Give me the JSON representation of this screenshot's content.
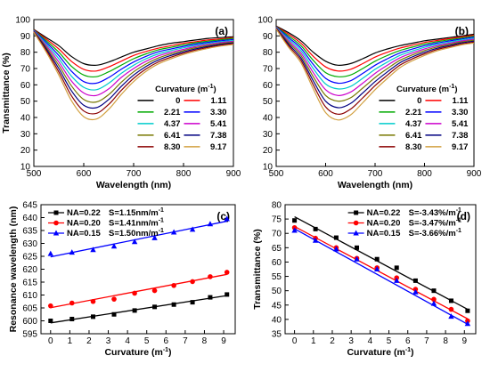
{
  "chart_data": [
    {
      "panel_label": "(a)",
      "type": "line",
      "xlabel": "Wavelength (nm)",
      "ylabel": "Transmittance (%)",
      "xlim": [
        500,
        900
      ],
      "ylim": [
        10,
        100
      ],
      "xticks": [
        500,
        600,
        700,
        800,
        900
      ],
      "yticks": [
        10,
        20,
        30,
        40,
        50,
        60,
        70,
        80,
        90,
        100
      ],
      "legend_title": "Curvature (m",
      "legend_title_sup": "-1",
      "legend_title_end": ")",
      "legend_position": "right",
      "x": [
        500,
        525,
        550,
        575,
        600,
        625,
        650,
        675,
        700,
        725,
        750,
        775,
        800,
        825,
        850,
        875,
        900
      ],
      "series": [
        {
          "name": "0",
          "color": "#000000",
          "values": [
            94,
            89,
            84,
            77.5,
            73,
            72,
            74,
            77,
            80,
            82,
            84,
            85.5,
            86.5,
            87.5,
            88.5,
            89,
            89.5
          ]
        },
        {
          "name": "1.11",
          "color": "#ff0000",
          "values": [
            93.8,
            88,
            82,
            74.5,
            69.5,
            68.5,
            71,
            74.5,
            78,
            80.5,
            82.5,
            84,
            85.5,
            86.5,
            87.5,
            88.2,
            89
          ]
        },
        {
          "name": "2.21",
          "color": "#00aa00",
          "values": [
            93.6,
            87,
            80,
            71.5,
            66,
            65,
            68,
            72,
            76,
            79,
            81.5,
            83,
            84.5,
            85.8,
            86.8,
            87.6,
            88.5
          ]
        },
        {
          "name": "3.30",
          "color": "#0000ff",
          "values": [
            93.4,
            86,
            78,
            68.5,
            62,
            61,
            64.5,
            69.5,
            74,
            77.5,
            80.3,
            82,
            83.6,
            85,
            86.1,
            87,
            87.8
          ]
        },
        {
          "name": "4.37",
          "color": "#00cccc",
          "values": [
            93.2,
            85,
            76,
            65.5,
            58.5,
            57,
            61,
            67,
            72,
            76,
            79,
            81,
            82.7,
            84.3,
            85.5,
            86.4,
            87.2
          ]
        },
        {
          "name": "5.41",
          "color": "#cc00cc",
          "values": [
            93,
            84,
            74,
            62.5,
            55,
            53.5,
            57.5,
            64.5,
            70,
            74.5,
            77.8,
            80,
            81.8,
            83.6,
            84.9,
            85.9,
            86.7
          ]
        },
        {
          "name": "6.41",
          "color": "#777700",
          "values": [
            92.8,
            83,
            72,
            59.5,
            51,
            49.5,
            54,
            61.5,
            68,
            72.8,
            76.5,
            79,
            81,
            82.8,
            84.2,
            85.3,
            86.2
          ]
        },
        {
          "name": "7.38",
          "color": "#000080",
          "values": [
            92.6,
            82,
            70,
            56.5,
            47.5,
            46,
            51,
            59,
            66,
            71.3,
            75.3,
            78,
            80.2,
            82.1,
            83.6,
            84.8,
            85.7
          ]
        },
        {
          "name": "8.30",
          "color": "#8b0000",
          "values": [
            92.4,
            81,
            68,
            53.5,
            44,
            42.5,
            48,
            56.5,
            64,
            69.8,
            74.1,
            77,
            79.4,
            81.4,
            83,
            84.3,
            85.2
          ]
        },
        {
          "name": "9.17",
          "color": "#d2a040",
          "values": [
            92.2,
            80,
            66,
            50.5,
            40.5,
            39,
            45,
            54,
            62,
            68.3,
            72.9,
            76,
            78.6,
            80.7,
            82.4,
            83.8,
            84.7
          ]
        }
      ]
    },
    {
      "panel_label": "(b)",
      "type": "line",
      "xlabel": "Wavelength (nm)",
      "ylabel": "",
      "xlim": [
        500,
        900
      ],
      "ylim": [
        10,
        100
      ],
      "xticks": [
        500,
        600,
        700,
        800,
        900
      ],
      "yticks": [
        10,
        20,
        30,
        40,
        50,
        60,
        70,
        80,
        90,
        100
      ],
      "legend_title": "Curvature (m",
      "legend_title_sup": "-1",
      "legend_title_end": ")",
      "legend_position": "right",
      "x": [
        500,
        525,
        550,
        575,
        600,
        625,
        650,
        675,
        700,
        725,
        750,
        775,
        800,
        825,
        850,
        875,
        900
      ],
      "series": [
        {
          "name": "0",
          "color": "#000000",
          "values": [
            96,
            92,
            87,
            80,
            74.5,
            72,
            73,
            76,
            79.5,
            82,
            84,
            85.5,
            87,
            88,
            89,
            90,
            91
          ]
        },
        {
          "name": "1.11",
          "color": "#ff0000",
          "values": [
            95.8,
            91,
            85.5,
            77.5,
            71,
            68.5,
            69.5,
            73,
            77,
            80,
            82.5,
            84.3,
            86,
            87.2,
            88.3,
            89.3,
            90.4
          ]
        },
        {
          "name": "2.21",
          "color": "#00aa00",
          "values": [
            95.6,
            90,
            84,
            75,
            67.5,
            65,
            66,
            70,
            74.5,
            78,
            81,
            83.1,
            85,
            86.4,
            87.6,
            88.7,
            89.8
          ]
        },
        {
          "name": "3.30",
          "color": "#0000ff",
          "values": [
            95.4,
            89,
            82.5,
            72.5,
            64,
            61,
            62.5,
            67,
            72,
            76,
            79.5,
            81.9,
            84,
            85.6,
            86.9,
            88.1,
            89.2
          ]
        },
        {
          "name": "4.37",
          "color": "#00cccc",
          "values": [
            95.2,
            88,
            81,
            70,
            60.5,
            57.5,
            59,
            64,
            69.5,
            74,
            78,
            80.7,
            83,
            84.8,
            86.2,
            87.5,
            88.6
          ]
        },
        {
          "name": "5.41",
          "color": "#cc00cc",
          "values": [
            95,
            87,
            79.5,
            67.5,
            57,
            53.5,
            55.5,
            61,
            67,
            72,
            76.5,
            79.5,
            82,
            84,
            85.5,
            86.9,
            88
          ]
        },
        {
          "name": "6.41",
          "color": "#777700",
          "values": [
            94.8,
            86,
            78,
            65,
            53.5,
            50,
            52,
            58,
            64.5,
            70,
            75,
            78.3,
            81,
            83.2,
            84.8,
            86.3,
            87.4
          ]
        },
        {
          "name": "7.38",
          "color": "#000080",
          "values": [
            94.6,
            85,
            76.5,
            62.5,
            50,
            46,
            48.5,
            55,
            62,
            68,
            73.5,
            77.1,
            80,
            82.4,
            84.1,
            85.7,
            86.8
          ]
        },
        {
          "name": "8.30",
          "color": "#8b0000",
          "values": [
            94.4,
            84,
            75,
            60,
            46.5,
            42,
            45,
            52,
            59.5,
            66,
            72,
            75.9,
            79,
            81.6,
            83.4,
            85.1,
            86.2
          ]
        },
        {
          "name": "9.17",
          "color": "#d2a040",
          "values": [
            94.2,
            83,
            73.5,
            57.5,
            43,
            38.5,
            41.5,
            49,
            57,
            64,
            70.5,
            74.7,
            78,
            80.8,
            82.7,
            84.5,
            85.6
          ]
        }
      ]
    },
    {
      "panel_label": "(c)",
      "type": "scatter",
      "xlabel": "Curvature (m",
      "xlabel_sup": "-1",
      "xlabel_end": ")",
      "ylabel": "Resonance wavelength (nm)",
      "xlim": [
        -0.5,
        9.6
      ],
      "ylim": [
        595,
        645
      ],
      "xticks": [
        0,
        1,
        2,
        3,
        4,
        5,
        6,
        7,
        8,
        9
      ],
      "yticks": [
        595,
        600,
        605,
        610,
        615,
        620,
        625,
        630,
        635,
        640,
        645
      ],
      "legend_position": "top-left",
      "x": [
        0,
        1.11,
        2.21,
        3.3,
        4.37,
        5.41,
        6.41,
        7.38,
        8.3,
        9.17
      ],
      "series": [
        {
          "name": "NA=0.22",
          "fit_label": "S=1.15nm/m",
          "color": "#000000",
          "marker": "square",
          "values": [
            600,
            600.7,
            601.6,
            602.5,
            604,
            605.4,
            606.3,
            607.2,
            609.1,
            610.2
          ],
          "fit": [
            599.2,
            609.8
          ]
        },
        {
          "name": "NA=0.20",
          "fit_label": "S=1.41nm/m",
          "color": "#ff0000",
          "marker": "circle",
          "values": [
            605.8,
            606.9,
            607.5,
            608.4,
            610.7,
            611.7,
            613.7,
            615.2,
            617.1,
            618.8
          ],
          "fit": [
            605.1,
            618.0
          ]
        },
        {
          "name": "NA=0.15",
          "fit_label": "S=1.50nm/m",
          "color": "#0000ff",
          "marker": "triangle",
          "values": [
            626,
            626.5,
            627.5,
            628.9,
            630.6,
            632.1,
            634.3,
            635.4,
            637.5,
            639.5
          ],
          "fit": [
            624.8,
            638.6
          ]
        }
      ],
      "fit_unit_sup": "-1"
    },
    {
      "panel_label": "(d)",
      "type": "scatter",
      "xlabel": "Curvature (m",
      "xlabel_sup": "-1",
      "xlabel_end": ")",
      "ylabel": "Transmittance (%)",
      "xlim": [
        -0.5,
        9.6
      ],
      "ylim": [
        35,
        80
      ],
      "xticks": [
        0,
        1,
        2,
        3,
        4,
        5,
        6,
        7,
        8,
        9
      ],
      "yticks": [
        35,
        40,
        45,
        50,
        55,
        60,
        65,
        70,
        75,
        80
      ],
      "legend_position": "top-right",
      "x": [
        0,
        1.11,
        2.21,
        3.3,
        4.37,
        5.41,
        6.41,
        7.38,
        8.3,
        9.17
      ],
      "series": [
        {
          "name": "NA=0.22",
          "fit_label": "S=-3.43%/m",
          "color": "#000000",
          "marker": "square",
          "values": [
            74.5,
            71.5,
            68.5,
            65,
            61,
            58,
            53.5,
            50,
            46.5,
            43
          ],
          "fit": [
            75.8,
            43.5
          ]
        },
        {
          "name": "NA=0.20",
          "fit_label": "S=-3.47%/m",
          "color": "#ff0000",
          "marker": "circle",
          "values": [
            72,
            68.3,
            65,
            61.3,
            58,
            54.5,
            50.5,
            47,
            43.5,
            39.5
          ],
          "fit": [
            72.4,
            40.2
          ]
        },
        {
          "name": "NA=0.15",
          "fit_label": "S=-3.66%/m",
          "color": "#0000ff",
          "marker": "triangle",
          "values": [
            71,
            67.5,
            64.5,
            61,
            57.5,
            53.5,
            49.5,
            45.5,
            41,
            38.5
          ],
          "fit": [
            71.6,
            38.3
          ]
        }
      ],
      "fit_unit_sup": "-1"
    }
  ]
}
